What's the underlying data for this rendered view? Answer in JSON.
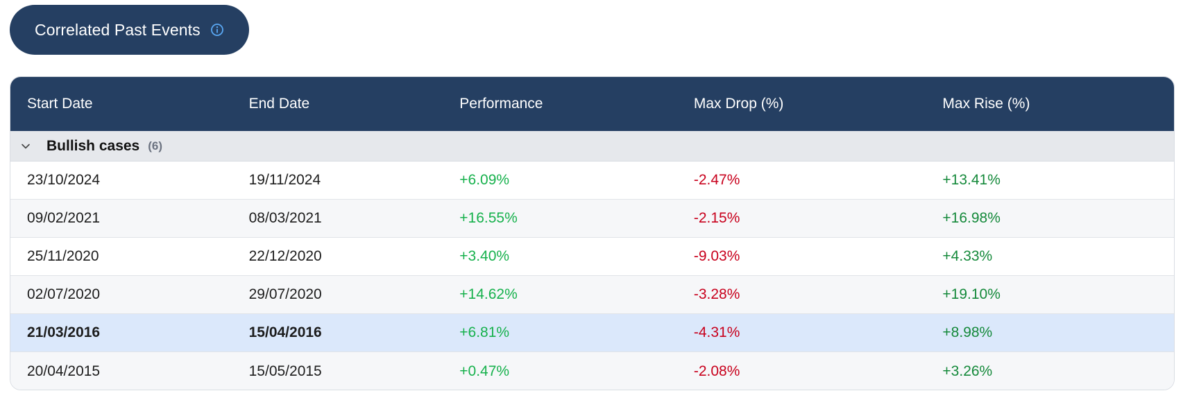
{
  "header": {
    "title": "Correlated Past Events",
    "info_icon": "info-icon"
  },
  "colors": {
    "header_bg": "#253f62",
    "positive_perf": "#16b14c",
    "negative": "#c8001c",
    "positive_rise": "#14893a",
    "selected_row": "#dbe8fb"
  },
  "table": {
    "columns": [
      "Start Date",
      "End Date",
      "Performance",
      "Max Drop (%)",
      "Max Rise (%)"
    ],
    "group": {
      "label": "Bullish cases",
      "count": "(6)"
    },
    "rows": [
      {
        "start": "23/10/2024",
        "end": "19/11/2024",
        "performance": "+6.09%",
        "max_drop": "-2.47%",
        "max_rise": "+13.41%"
      },
      {
        "start": "09/02/2021",
        "end": "08/03/2021",
        "performance": "+16.55%",
        "max_drop": "-2.15%",
        "max_rise": "+16.98%"
      },
      {
        "start": "25/11/2020",
        "end": "22/12/2020",
        "performance": "+3.40%",
        "max_drop": "-9.03%",
        "max_rise": "+4.33%"
      },
      {
        "start": "02/07/2020",
        "end": "29/07/2020",
        "performance": "+14.62%",
        "max_drop": "-3.28%",
        "max_rise": "+19.10%"
      },
      {
        "start": "21/03/2016",
        "end": "15/04/2016",
        "performance": "+6.81%",
        "max_drop": "-4.31%",
        "max_rise": "+8.98%"
      },
      {
        "start": "20/04/2015",
        "end": "15/05/2015",
        "performance": "+0.47%",
        "max_drop": "-2.08%",
        "max_rise": "+3.26%"
      }
    ]
  }
}
